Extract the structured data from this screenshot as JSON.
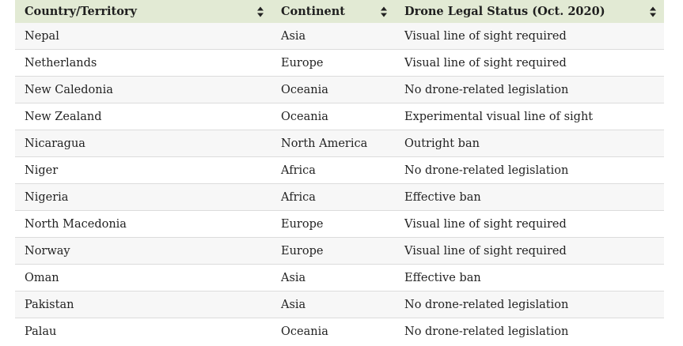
{
  "table": {
    "headers": [
      "Country/Territory",
      "Continent",
      "Drone Legal Status (Oct. 2020)"
    ],
    "rows": [
      [
        "Nepal",
        "Asia",
        "Visual line of sight required"
      ],
      [
        "Netherlands",
        "Europe",
        "Visual line of sight required"
      ],
      [
        "New Caledonia",
        "Oceania",
        "No drone-related legislation"
      ],
      [
        "New Zealand",
        "Oceania",
        "Experimental visual line of sight"
      ],
      [
        "Nicaragua",
        "North America",
        "Outright ban"
      ],
      [
        "Niger",
        "Africa",
        "No drone-related legislation"
      ],
      [
        "Nigeria",
        "Africa",
        "Effective ban"
      ],
      [
        "North Macedonia",
        "Europe",
        "Visual line of sight required"
      ],
      [
        "Norway",
        "Europe",
        "Visual line of sight required"
      ],
      [
        "Oman",
        "Asia",
        "Effective ban"
      ],
      [
        "Pakistan",
        "Asia",
        "No drone-related legislation"
      ],
      [
        "Palau",
        "Oceania",
        "No drone-related legislation"
      ]
    ],
    "sort_icon": "sort-up-down-icon"
  },
  "colors": {
    "header_bg": "#e2ead4",
    "stripe_bg": "#f7f7f7",
    "row_border": "#dcdcdc",
    "text": "#222222"
  }
}
